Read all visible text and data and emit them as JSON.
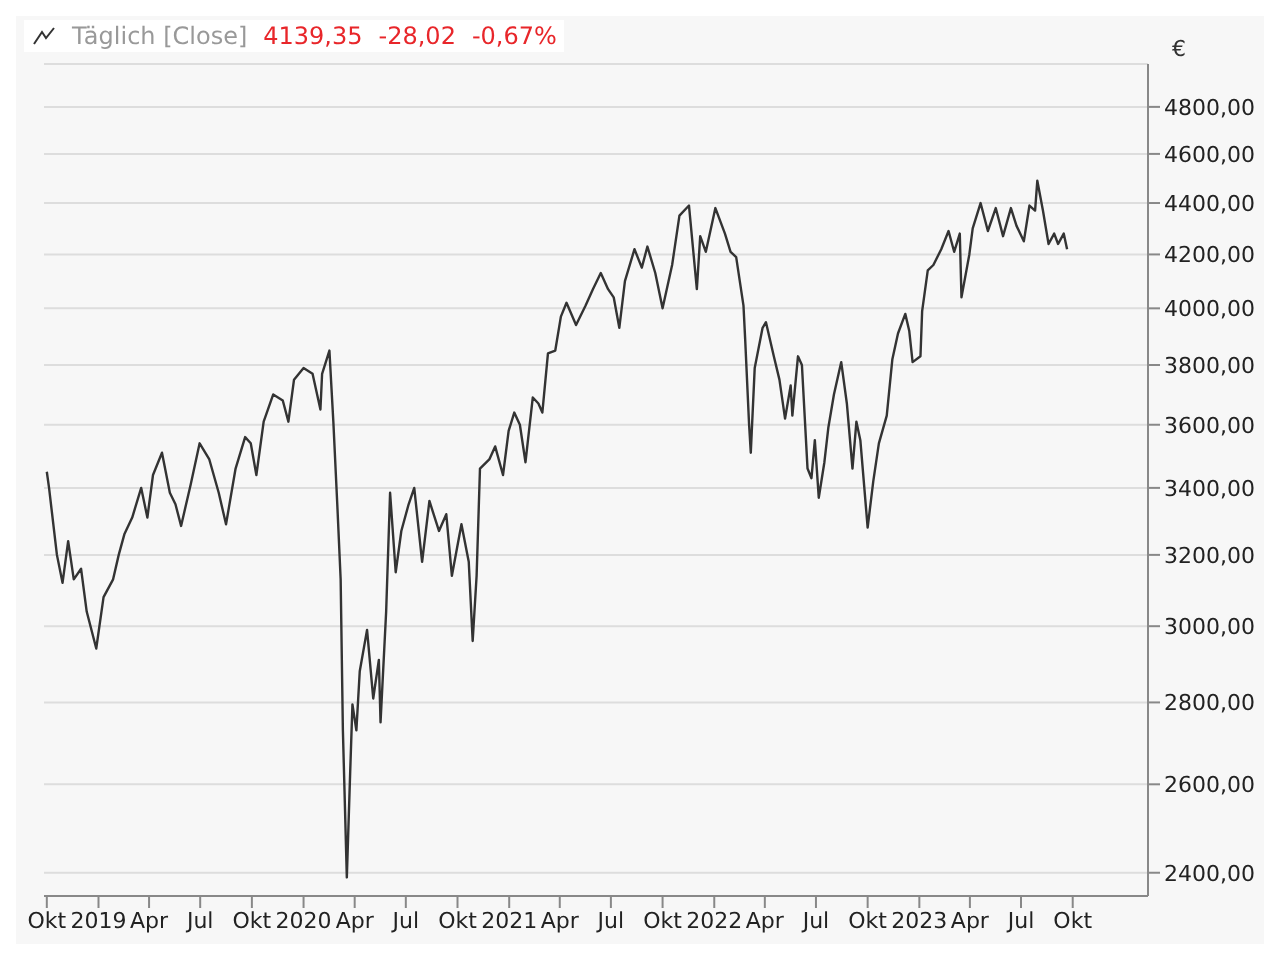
{
  "chart_data": {
    "type": "line",
    "title": "Täglich [Close]",
    "annotations": [
      "4139,35",
      "-28,02",
      "-0,67%"
    ],
    "ylabel": "€",
    "log": true,
    "grid": "y",
    "line_style": "solid",
    "xlim": [
      "2018-09-26",
      "2024-02-12"
    ],
    "xticks": [
      {
        "value": "2018-10-01",
        "label": "Okt"
      },
      {
        "value": "2019-01-01",
        "label": "2019"
      },
      {
        "value": "2019-04-01",
        "label": "Apr"
      },
      {
        "value": "2019-07-01",
        "label": "Jul"
      },
      {
        "value": "2019-10-01",
        "label": "Okt"
      },
      {
        "value": "2020-01-01",
        "label": "2020"
      },
      {
        "value": "2020-04-01",
        "label": "Apr"
      },
      {
        "value": "2020-07-01",
        "label": "Jul"
      },
      {
        "value": "2020-10-01",
        "label": "Okt"
      },
      {
        "value": "2021-01-01",
        "label": "2021"
      },
      {
        "value": "2021-04-01",
        "label": "Apr"
      },
      {
        "value": "2021-07-01",
        "label": "Jul"
      },
      {
        "value": "2021-10-01",
        "label": "Okt"
      },
      {
        "value": "2022-01-01",
        "label": "2022"
      },
      {
        "value": "2022-04-01",
        "label": "Apr"
      },
      {
        "value": "2022-07-01",
        "label": "Jul"
      },
      {
        "value": "2022-10-01",
        "label": "Okt"
      },
      {
        "value": "2023-01-01",
        "label": "2023"
      },
      {
        "value": "2023-04-01",
        "label": "Apr"
      },
      {
        "value": "2023-07-01",
        "label": "Jul"
      },
      {
        "value": "2023-10-01",
        "label": "Okt"
      }
    ],
    "ylim": [
      2350,
      4990
    ],
    "yticks": [
      {
        "value": 2400,
        "label": "2400,00"
      },
      {
        "value": 2600,
        "label": "2600,00"
      },
      {
        "value": 2800,
        "label": "2800,00"
      },
      {
        "value": 3000,
        "label": "3000,00"
      },
      {
        "value": 3200,
        "label": "3200,00"
      },
      {
        "value": 3400,
        "label": "3400,00"
      },
      {
        "value": 3600,
        "label": "3600,00"
      },
      {
        "value": 3800,
        "label": "3800,00"
      },
      {
        "value": 4000,
        "label": "4000,00"
      },
      {
        "value": 4200,
        "label": "4200,00"
      },
      {
        "value": 4400,
        "label": "4400,00"
      },
      {
        "value": 4600,
        "label": "4600,00"
      },
      {
        "value": 4800,
        "label": "4800,00"
      }
    ],
    "x": [
      "2018-10-01",
      "2018-10-05",
      "2018-10-19",
      "2018-10-29",
      "2018-11-08",
      "2018-11-18",
      "2018-12-01",
      "2018-12-11",
      "2018-12-28",
      "2019-01-10",
      "2019-01-27",
      "2019-02-06",
      "2019-02-16",
      "2019-03-02",
      "2019-03-18",
      "2019-03-29",
      "2019-04-08",
      "2019-04-24",
      "2019-05-08",
      "2019-05-18",
      "2019-05-28",
      "2019-06-14",
      "2019-06-30",
      "2019-07-17",
      "2019-08-03",
      "2019-08-16",
      "2019-09-02",
      "2019-09-19",
      "2019-09-29",
      "2019-10-09",
      "2019-10-22",
      "2019-11-08",
      "2019-11-25",
      "2019-12-05",
      "2019-12-15",
      "2020-01-01",
      "2020-01-17",
      "2020-01-31",
      "2020-02-03",
      "2020-02-16",
      "2020-02-23",
      "2020-03-01",
      "2020-03-07",
      "2020-03-11",
      "2020-03-18",
      "2020-03-24",
      "2020-03-28",
      "2020-04-04",
      "2020-04-10",
      "2020-04-23",
      "2020-05-04",
      "2020-05-14",
      "2020-05-17",
      "2020-05-27",
      "2020-06-03",
      "2020-06-13",
      "2020-06-23",
      "2020-07-06",
      "2020-07-16",
      "2020-07-30",
      "2020-08-12",
      "2020-08-29",
      "2020-09-11",
      "2020-09-21",
      "2020-10-08",
      "2020-10-21",
      "2020-10-28",
      "2020-11-04",
      "2020-11-10",
      "2020-11-27",
      "2020-12-07",
      "2020-12-21",
      "2020-12-31",
      "2021-01-10",
      "2021-01-20",
      "2021-01-30",
      "2021-02-12",
      "2021-02-22",
      "2021-03-01",
      "2021-03-11",
      "2021-03-24",
      "2021-04-03",
      "2021-04-13",
      "2021-04-30",
      "2021-05-17",
      "2021-05-30",
      "2021-06-13",
      "2021-06-26",
      "2021-07-06",
      "2021-07-16",
      "2021-07-26",
      "2021-08-12",
      "2021-08-25",
      "2021-09-04",
      "2021-09-18",
      "2021-10-01",
      "2021-10-18",
      "2021-10-31",
      "2021-11-17",
      "2021-12-01",
      "2021-12-07",
      "2021-12-17",
      "2022-01-03",
      "2022-01-20",
      "2022-01-30",
      "2022-02-09",
      "2022-02-22",
      "2022-02-25",
      "2022-03-04",
      "2022-03-07",
      "2022-03-14",
      "2022-03-28",
      "2022-04-03",
      "2022-04-17",
      "2022-04-27",
      "2022-05-07",
      "2022-05-17",
      "2022-05-20",
      "2022-05-30",
      "2022-06-06",
      "2022-06-16",
      "2022-06-23",
      "2022-06-29",
      "2022-07-06",
      "2022-07-16",
      "2022-07-23",
      "2022-08-02",
      "2022-08-15",
      "2022-08-25",
      "2022-09-04",
      "2022-09-11",
      "2022-09-18",
      "2022-10-01",
      "2022-10-11",
      "2022-10-21",
      "2022-11-04",
      "2022-11-14",
      "2022-11-24",
      "2022-12-07",
      "2022-12-14",
      "2022-12-20",
      "2023-01-03",
      "2023-01-06",
      "2023-01-16",
      "2023-01-26",
      "2023-02-09",
      "2023-02-22",
      "2023-03-04",
      "2023-03-14",
      "2023-03-17",
      "2023-03-31",
      "2023-04-06",
      "2023-04-20",
      "2023-05-03",
      "2023-05-17",
      "2023-05-30",
      "2023-06-13",
      "2023-06-23",
      "2023-07-06",
      "2023-07-16",
      "2023-07-26",
      "2023-07-30",
      "2023-08-09",
      "2023-08-19",
      "2023-08-29",
      "2023-09-05",
      "2023-09-15",
      "2023-09-21"
    ],
    "series": [
      {
        "color": "#333333",
        "values": [
          3450,
          3400,
          3200,
          3120,
          3240,
          3130,
          3160,
          3040,
          2940,
          3080,
          3130,
          3200,
          3260,
          3310,
          3400,
          3310,
          3440,
          3510,
          3385,
          3350,
          3285,
          3410,
          3540,
          3490,
          3385,
          3290,
          3460,
          3560,
          3540,
          3440,
          3610,
          3700,
          3680,
          3610,
          3750,
          3790,
          3770,
          3650,
          3770,
          3850,
          3610,
          3350,
          3130,
          2730,
          2390,
          2630,
          2795,
          2730,
          2880,
          2990,
          2810,
          2910,
          2750,
          3040,
          3385,
          3150,
          3270,
          3350,
          3400,
          3180,
          3360,
          3270,
          3320,
          3140,
          3290,
          3180,
          2960,
          3140,
          3460,
          3490,
          3530,
          3440,
          3580,
          3640,
          3600,
          3480,
          3690,
          3670,
          3640,
          3840,
          3850,
          3970,
          4020,
          3940,
          4010,
          4070,
          4130,
          4070,
          4040,
          3930,
          4100,
          4220,
          4150,
          4230,
          4130,
          4000,
          4160,
          4350,
          4390,
          4070,
          4270,
          4210,
          4380,
          4280,
          4210,
          4190,
          4010,
          3890,
          3600,
          3510,
          3790,
          3930,
          3950,
          3830,
          3750,
          3620,
          3730,
          3630,
          3830,
          3800,
          3460,
          3430,
          3550,
          3370,
          3480,
          3590,
          3700,
          3810,
          3670,
          3460,
          3610,
          3550,
          3280,
          3420,
          3540,
          3630,
          3820,
          3910,
          3980,
          3920,
          3810,
          3830,
          3990,
          4140,
          4160,
          4220,
          4290,
          4210,
          4280,
          4040,
          4200,
          4300,
          4400,
          4290,
          4380,
          4270,
          4380,
          4310,
          4250,
          4390,
          4370,
          4490,
          4370,
          4240,
          4280,
          4240,
          4280,
          4220
        ]
      }
    ]
  }
}
